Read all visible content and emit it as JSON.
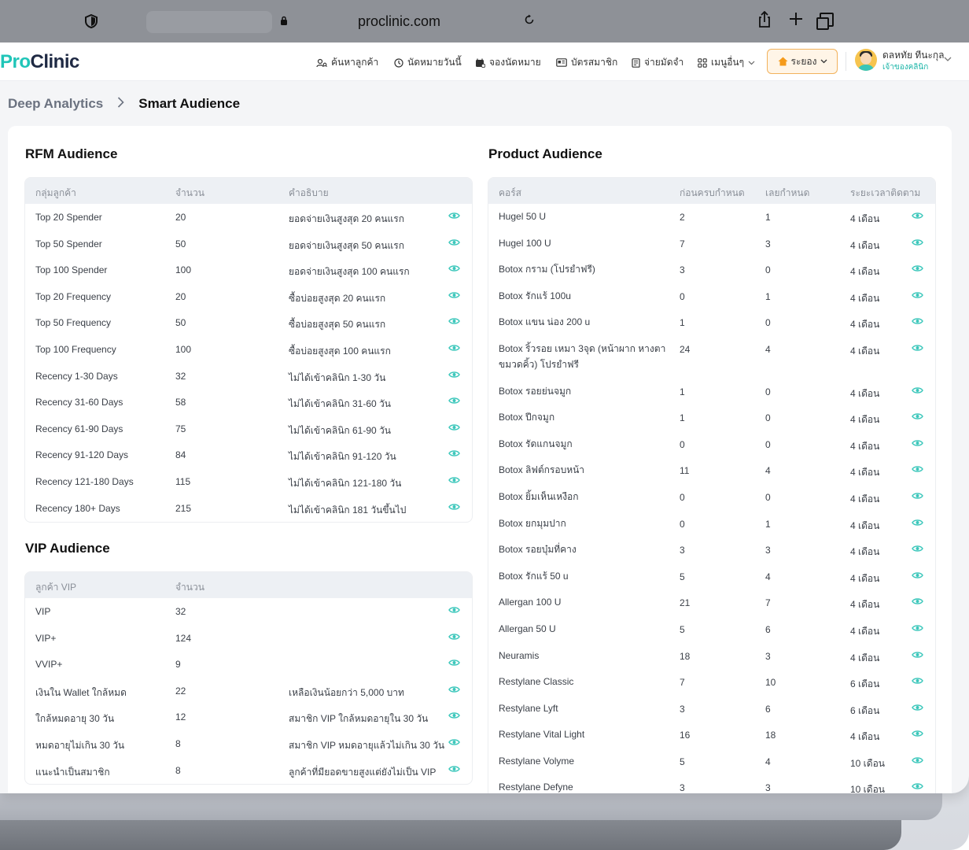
{
  "browser": {
    "url": "proclinic.com"
  },
  "brand": {
    "logo_pro": "Pro",
    "logo_clinic": "Clinic",
    "accent": "#20c5b8"
  },
  "nav": {
    "items": [
      {
        "icon": "user-search-icon",
        "label": "ค้นหาลูกค้า"
      },
      {
        "icon": "clock-icon",
        "label": "นัดหมายวันนี้"
      },
      {
        "icon": "calendar-plus-icon",
        "label": "จองนัดหมาย"
      },
      {
        "icon": "id-card-icon",
        "label": "บัตรสมาชิก"
      },
      {
        "icon": "receipt-icon",
        "label": "จ่ายมัดจำ"
      },
      {
        "icon": "grid-icon",
        "label": "เมนูอื่นๆ"
      }
    ],
    "branch": "ระยอง",
    "user_name": "ดลหทัย ทีนะกุล",
    "user_role": "เจ้าของคลินิก"
  },
  "breadcrumb": {
    "parent": "Deep Analytics",
    "current": "Smart Audience"
  },
  "rfm": {
    "title": "RFM Audience",
    "headers": [
      "กลุ่มลูกค้า",
      "จำนวน",
      "คำอธิบาย"
    ],
    "rows": [
      [
        "Top 20 Spender",
        "20",
        "ยอดจ่ายเงินสูงสุด 20 คนแรก"
      ],
      [
        "Top 50 Spender",
        "50",
        "ยอดจ่ายเงินสูงสุด 50 คนแรก"
      ],
      [
        "Top 100 Spender",
        "100",
        "ยอดจ่ายเงินสูงสุด 100 คนแรก"
      ],
      [
        "Top 20 Frequency",
        "20",
        "ซื้อบ่อยสูงสุด 20 คนแรก"
      ],
      [
        "Top 50 Frequency",
        "50",
        "ซื้อบ่อยสูงสุด 50 คนแรก"
      ],
      [
        "Top 100 Frequency",
        "100",
        "ซื้อบ่อยสูงสุด 100 คนแรก"
      ],
      [
        "Recency 1-30 Days",
        "32",
        "ไม่ได้เข้าคลินิก 1-30 วัน"
      ],
      [
        "Recency 31-60 Days",
        "58",
        "ไม่ได้เข้าคลินิก 31-60 วัน"
      ],
      [
        "Recency 61-90 Days",
        "75",
        "ไม่ได้เข้าคลินิก 61-90 วัน"
      ],
      [
        "Recency 91-120 Days",
        "84",
        "ไม่ได้เข้าคลินิก 91-120 วัน"
      ],
      [
        "Recency 121-180 Days",
        "115",
        "ไม่ได้เข้าคลินิก 121-180 วัน"
      ],
      [
        "Recency 180+ Days",
        "215",
        "ไม่ได้เข้าคลินิก 181 วันขึ้นไป"
      ]
    ]
  },
  "vip": {
    "title": "VIP Audience",
    "headers": [
      "ลูกค้า VIP",
      "จำนวน"
    ],
    "rows": [
      [
        "VIP",
        "32",
        ""
      ],
      [
        "VIP+",
        "124",
        ""
      ],
      [
        "VVIP+",
        "9",
        ""
      ],
      [
        "เงินใน Wallet ใกล้หมด",
        "22",
        "เหลือเงินน้อยกว่า 5,000 บาท"
      ],
      [
        "ใกล้หมดอายุ 30 วัน",
        "12",
        "สมาชิก VIP ใกล้หมดอายุใน 30 วัน"
      ],
      [
        "หมดอายุไม่เกิน 30 วัน",
        "8",
        "สมาชิก VIP หมดอายุแล้วไม่เกิน 30 วัน"
      ],
      [
        "แนะนำเป็นสมาชิก",
        "8",
        "ลูกค้าที่มียอดขายสูงแต่ยังไม่เป็น VIP"
      ]
    ]
  },
  "product": {
    "title": "Product Audience",
    "headers": [
      "คอร์ส",
      "ก่อนครบกำหนด",
      "เลยกำหนด",
      "ระยะเวลาติดตาม"
    ],
    "rows": [
      [
        "Hugel 50 U",
        "2",
        "1",
        "4 เดือน"
      ],
      [
        "Hugel 100 U",
        "7",
        "3",
        "4 เดือน"
      ],
      [
        "Botox กราม (โปรยำฟรี)",
        "3",
        "0",
        "4 เดือน"
      ],
      [
        "Botox รักแร้ 100u",
        "0",
        "1",
        "4 เดือน"
      ],
      [
        "Botox แขน น่อง 200 u",
        "1",
        "0",
        "4 เดือน"
      ],
      [
        "Botox ริ้วรอย เหมา 3จุด (หน้าผาก หางตา ขมวดคิ้ว) โปรยำฟรี",
        "24",
        "4",
        "4 เดือน"
      ],
      [
        "Botox รอยย่นจมูก",
        "1",
        "0",
        "4 เดือน"
      ],
      [
        "Botox ปีกจมูก",
        "1",
        "0",
        "4 เดือน"
      ],
      [
        "Botox รัดแกนจมูก",
        "0",
        "0",
        "4 เดือน"
      ],
      [
        "Botox ลิฟต์กรอบหน้า",
        "11",
        "4",
        "4 เดือน"
      ],
      [
        "Botox ยิ้มเห็นเหงือก",
        "0",
        "0",
        "4 เดือน"
      ],
      [
        "Botox ยกมุมปาก",
        "0",
        "1",
        "4 เดือน"
      ],
      [
        "Botox รอยบุ๋มที่คาง",
        "3",
        "3",
        "4 เดือน"
      ],
      [
        "Botox รักแร้ 50 u",
        "5",
        "4",
        "4 เดือน"
      ],
      [
        "Allergan 100 U",
        "21",
        "7",
        "4 เดือน"
      ],
      [
        "Allergan 50 U",
        "5",
        "6",
        "4 เดือน"
      ],
      [
        "Neuramis",
        "18",
        "3",
        "4 เดือน"
      ],
      [
        "Restylane Classic",
        "7",
        "10",
        "6 เดือน"
      ],
      [
        "Restylane Lyft",
        "3",
        "6",
        "6 เดือน"
      ],
      [
        "Restylane Vital Light",
        "16",
        "18",
        "4 เดือน"
      ],
      [
        "Restylane Volyme",
        "5",
        "4",
        "10 เดือน"
      ],
      [
        "Restylane Defyne",
        "3",
        "3",
        "10 เดือน"
      ]
    ]
  }
}
